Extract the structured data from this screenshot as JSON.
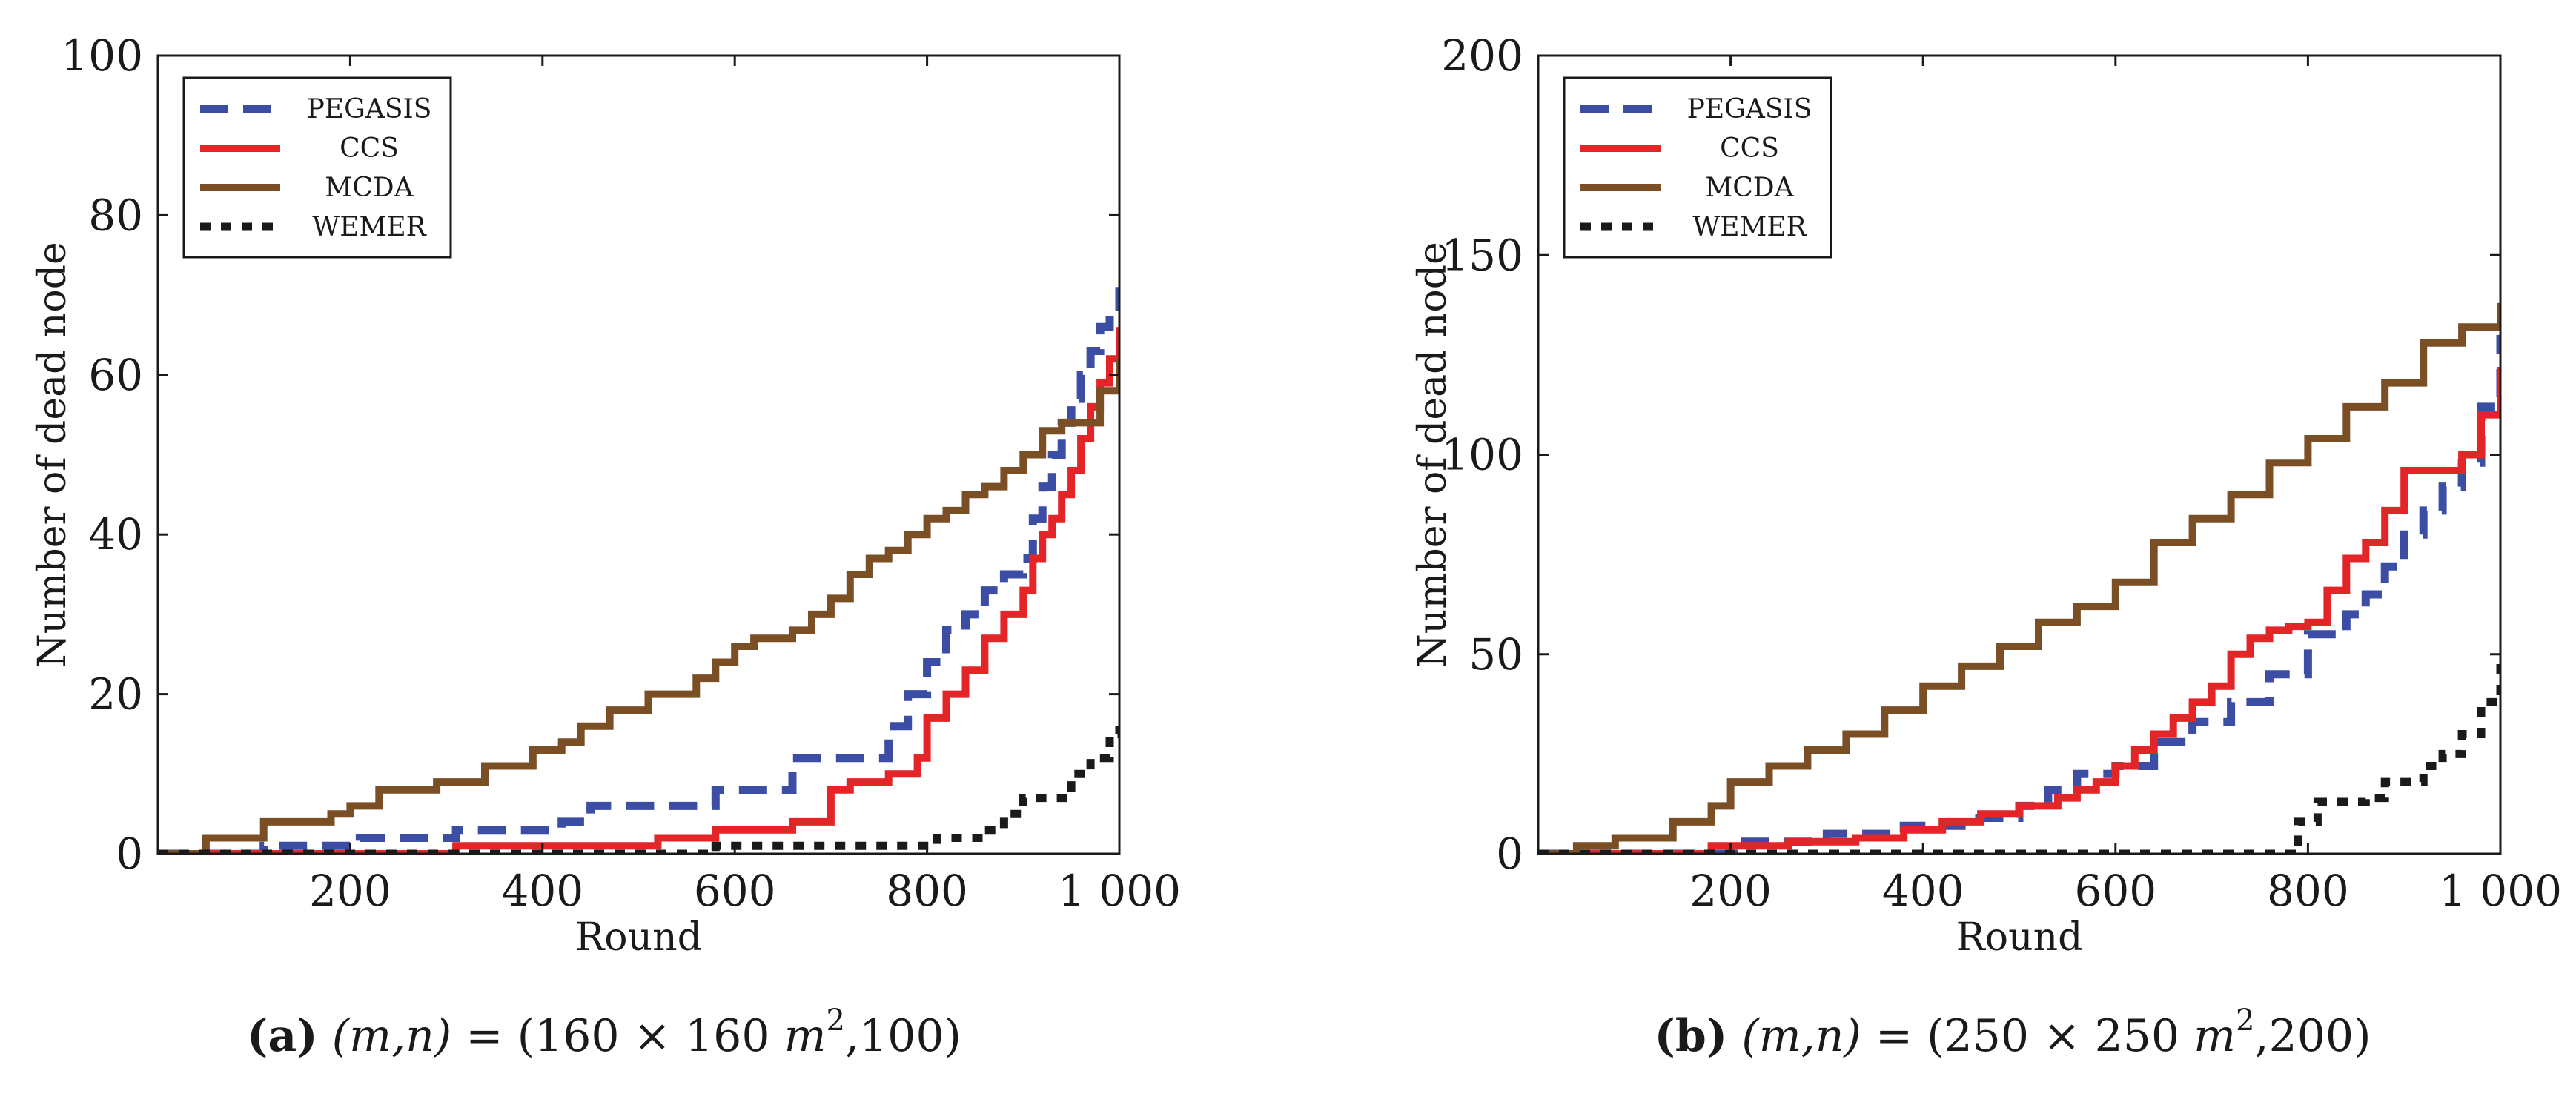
{
  "chart_data": [
    {
      "type": "line",
      "panel": "a",
      "caption": {
        "label": "(a)",
        "lhs": "(m,n)",
        "eq": " = ",
        "open": "(160 × 160 ",
        "unit": "m",
        "sup": "2",
        "close": ",100)"
      },
      "xlabel": "Round",
      "ylabel": "Number of dead node",
      "xlim": [
        0,
        1000
      ],
      "ylim": [
        0,
        100
      ],
      "xticks": [
        200,
        400,
        600,
        800,
        1000
      ],
      "xtick_labels": [
        "200",
        "400",
        "600",
        "800",
        "1 000"
      ],
      "yticks": [
        0,
        20,
        40,
        60,
        80,
        100
      ],
      "ytick_labels": [
        "0",
        "20",
        "40",
        "60",
        "80",
        "100"
      ],
      "legend": [
        "PEGASIS",
        "CCS",
        "MCDA",
        "WEMER"
      ],
      "series": [
        {
          "name": "PEGASIS",
          "color": "#3c4ea3",
          "style": "dashed",
          "x": [
            0,
            110,
            210,
            310,
            420,
            450,
            580,
            660,
            760,
            780,
            800,
            820,
            840,
            860,
            880,
            900,
            910,
            920,
            930,
            940,
            950,
            960,
            970,
            980,
            990,
            1000
          ],
          "y": [
            0,
            1,
            2,
            3,
            4,
            6,
            8,
            12,
            16,
            20,
            24,
            28,
            30,
            33,
            35,
            37,
            42,
            46,
            50,
            54,
            57,
            60,
            63,
            66,
            68,
            71
          ]
        },
        {
          "name": "CCS",
          "color": "#e42528",
          "style": "solid",
          "x": [
            0,
            310,
            520,
            580,
            660,
            700,
            720,
            760,
            790,
            800,
            820,
            840,
            860,
            880,
            900,
            910,
            920,
            930,
            940,
            950,
            960,
            970,
            980,
            990,
            1000
          ],
          "y": [
            0,
            1,
            2,
            3,
            4,
            8,
            9,
            10,
            12,
            17,
            20,
            23,
            27,
            30,
            33,
            37,
            40,
            42,
            45,
            48,
            52,
            56,
            59,
            62,
            66
          ]
        },
        {
          "name": "MCDA",
          "color": "#7a4f26",
          "style": "solid",
          "x": [
            0,
            50,
            110,
            180,
            200,
            230,
            290,
            340,
            390,
            420,
            440,
            470,
            510,
            560,
            580,
            600,
            620,
            660,
            680,
            700,
            720,
            740,
            760,
            780,
            800,
            820,
            840,
            860,
            880,
            900,
            920,
            940,
            960,
            980,
            1000
          ],
          "y": [
            0,
            2,
            4,
            5,
            6,
            8,
            9,
            11,
            13,
            14,
            16,
            18,
            20,
            22,
            24,
            26,
            27,
            28,
            30,
            32,
            35,
            37,
            38,
            40,
            42,
            43,
            45,
            46,
            48,
            50,
            53,
            54,
            54,
            58,
            62
          ]
        },
        {
          "name": "WEMER",
          "color": "#1a1a1a",
          "style": "dotted",
          "x": [
            0,
            580,
            780,
            810,
            840,
            860,
            880,
            900,
            920,
            950,
            970,
            990,
            1000
          ],
          "y": [
            0,
            1,
            1,
            2,
            2,
            3,
            5,
            7,
            7,
            10,
            12,
            15,
            16
          ]
        }
      ]
    },
    {
      "type": "line",
      "panel": "b",
      "caption": {
        "label": "(b)",
        "lhs": "(m,n)",
        "eq": " = ",
        "open": "(250 × 250 ",
        "unit": "m",
        "sup": "2",
        "close": ",200)"
      },
      "xlabel": "Round",
      "ylabel": "Number of dead node",
      "xlim": [
        0,
        1000
      ],
      "ylim": [
        0,
        200
      ],
      "xticks": [
        200,
        400,
        600,
        800,
        1000
      ],
      "xtick_labels": [
        "200",
        "400",
        "600",
        "800",
        "1 000"
      ],
      "yticks": [
        0,
        50,
        100,
        150,
        200
      ],
      "ytick_labels": [
        "0",
        "50",
        "100",
        "150",
        "200"
      ],
      "legend": [
        "PEGASIS",
        "CCS",
        "MCDA",
        "WEMER"
      ],
      "series": [
        {
          "name": "PEGASIS",
          "color": "#3c4ea3",
          "style": "dashed",
          "x": [
            0,
            210,
            300,
            380,
            440,
            500,
            530,
            560,
            600,
            640,
            680,
            720,
            760,
            800,
            840,
            860,
            880,
            900,
            920,
            940,
            960,
            980,
            1000
          ],
          "y": [
            0,
            3,
            5,
            7,
            9,
            12,
            16,
            20,
            22,
            28,
            33,
            38,
            45,
            55,
            60,
            65,
            72,
            80,
            86,
            92,
            98,
            112,
            130
          ]
        },
        {
          "name": "CCS",
          "color": "#e42528",
          "style": "solid",
          "x": [
            0,
            180,
            260,
            330,
            380,
            420,
            460,
            500,
            540,
            560,
            580,
            600,
            620,
            640,
            660,
            680,
            700,
            720,
            740,
            760,
            780,
            800,
            820,
            840,
            860,
            880,
            900,
            940,
            960,
            980,
            1000
          ],
          "y": [
            0,
            2,
            3,
            4,
            6,
            8,
            10,
            12,
            14,
            16,
            18,
            22,
            26,
            30,
            34,
            38,
            42,
            50,
            54,
            56,
            57,
            58,
            66,
            74,
            78,
            86,
            96,
            96,
            100,
            110,
            122
          ]
        },
        {
          "name": "MCDA",
          "color": "#7a4f26",
          "style": "solid",
          "x": [
            0,
            40,
            80,
            140,
            180,
            200,
            240,
            280,
            320,
            360,
            400,
            440,
            480,
            520,
            560,
            600,
            640,
            680,
            720,
            760,
            800,
            840,
            880,
            920,
            960,
            1000
          ],
          "y": [
            0,
            2,
            4,
            8,
            12,
            18,
            22,
            26,
            30,
            36,
            42,
            47,
            52,
            58,
            62,
            68,
            78,
            84,
            90,
            98,
            104,
            112,
            118,
            128,
            132,
            138
          ]
        },
        {
          "name": "WEMER",
          "color": "#1a1a1a",
          "style": "dotted",
          "x": [
            0,
            500,
            780,
            790,
            810,
            860,
            880,
            920,
            940,
            960,
            980,
            1000
          ],
          "y": [
            0,
            0,
            0,
            8,
            13,
            14,
            18,
            22,
            25,
            30,
            38,
            48
          ]
        }
      ]
    }
  ]
}
